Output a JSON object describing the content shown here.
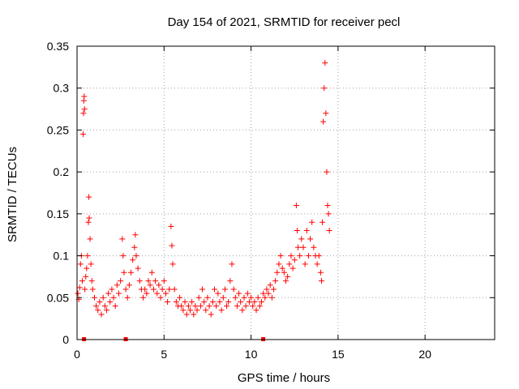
{
  "chart_data": {
    "type": "scatter",
    "title": "Day 154 of 2021, SRMTID for receiver pecl",
    "xlabel": "GPS time / hours",
    "ylabel": "SRMTID / TECUs",
    "xlim": [
      0,
      24
    ],
    "ylim": [
      0,
      0.35
    ],
    "x_ticks": [
      0,
      5,
      10,
      15,
      20
    ],
    "y_ticks": [
      0,
      0.05,
      0.1,
      0.15,
      0.2,
      0.25,
      0.3,
      0.35
    ],
    "x_tick_labels": [
      "0",
      "5",
      "10",
      "15",
      "20"
    ],
    "y_tick_labels": [
      "0",
      "0.05",
      "0.1",
      "0.15",
      "0.2",
      "0.25",
      "0.3",
      "0.35"
    ],
    "grid": true,
    "marker": "+",
    "color": "#ff0000",
    "gap_markers_x": [
      0.4,
      2.8,
      10.7
    ],
    "series": [
      {
        "name": "SRMTID",
        "points": [
          [
            0.05,
            0.055
          ],
          [
            0.1,
            0.048
          ],
          [
            0.15,
            0.062
          ],
          [
            0.2,
            0.09
          ],
          [
            0.25,
            0.1
          ],
          [
            0.3,
            0.07
          ],
          [
            0.35,
            0.245
          ],
          [
            0.37,
            0.27
          ],
          [
            0.39,
            0.285
          ],
          [
            0.41,
            0.29
          ],
          [
            0.43,
            0.275
          ],
          [
            0.45,
            0.06
          ],
          [
            0.5,
            0.075
          ],
          [
            0.55,
            0.085
          ],
          [
            0.6,
            0.1
          ],
          [
            0.65,
            0.14
          ],
          [
            0.68,
            0.17
          ],
          [
            0.7,
            0.145
          ],
          [
            0.75,
            0.12
          ],
          [
            0.8,
            0.09
          ],
          [
            0.85,
            0.07
          ],
          [
            0.9,
            0.06
          ],
          [
            1.0,
            0.05
          ],
          [
            1.1,
            0.04
          ],
          [
            1.2,
            0.035
          ],
          [
            1.3,
            0.045
          ],
          [
            1.4,
            0.03
          ],
          [
            1.5,
            0.05
          ],
          [
            1.6,
            0.04
          ],
          [
            1.7,
            0.035
          ],
          [
            1.8,
            0.055
          ],
          [
            1.9,
            0.045
          ],
          [
            2.0,
            0.06
          ],
          [
            2.1,
            0.05
          ],
          [
            2.2,
            0.04
          ],
          [
            2.3,
            0.065
          ],
          [
            2.4,
            0.055
          ],
          [
            2.5,
            0.07
          ],
          [
            2.6,
            0.12
          ],
          [
            2.65,
            0.1
          ],
          [
            2.7,
            0.08
          ],
          [
            2.8,
            0.06
          ],
          [
            2.9,
            0.05
          ],
          [
            3.0,
            0.065
          ],
          [
            3.1,
            0.08
          ],
          [
            3.2,
            0.095
          ],
          [
            3.3,
            0.11
          ],
          [
            3.35,
            0.125
          ],
          [
            3.4,
            0.1
          ],
          [
            3.5,
            0.085
          ],
          [
            3.6,
            0.07
          ],
          [
            3.7,
            0.06
          ],
          [
            3.8,
            0.05
          ],
          [
            3.9,
            0.06
          ],
          [
            4.0,
            0.055
          ],
          [
            4.1,
            0.07
          ],
          [
            4.2,
            0.065
          ],
          [
            4.3,
            0.08
          ],
          [
            4.4,
            0.06
          ],
          [
            4.5,
            0.07
          ],
          [
            4.6,
            0.055
          ],
          [
            4.7,
            0.065
          ],
          [
            4.8,
            0.05
          ],
          [
            4.9,
            0.06
          ],
          [
            5.0,
            0.07
          ],
          [
            5.1,
            0.055
          ],
          [
            5.2,
            0.045
          ],
          [
            5.3,
            0.06
          ],
          [
            5.4,
            0.135
          ],
          [
            5.45,
            0.112
          ],
          [
            5.5,
            0.09
          ],
          [
            5.6,
            0.06
          ],
          [
            5.7,
            0.045
          ],
          [
            5.8,
            0.04
          ],
          [
            5.9,
            0.05
          ],
          [
            6.0,
            0.04
          ],
          [
            6.1,
            0.035
          ],
          [
            6.2,
            0.045
          ],
          [
            6.3,
            0.03
          ],
          [
            6.4,
            0.04
          ],
          [
            6.5,
            0.035
          ],
          [
            6.6,
            0.045
          ],
          [
            6.7,
            0.03
          ],
          [
            6.8,
            0.04
          ],
          [
            6.9,
            0.035
          ],
          [
            7.0,
            0.05
          ],
          [
            7.1,
            0.04
          ],
          [
            7.2,
            0.06
          ],
          [
            7.3,
            0.045
          ],
          [
            7.4,
            0.035
          ],
          [
            7.5,
            0.05
          ],
          [
            7.6,
            0.04
          ],
          [
            7.7,
            0.03
          ],
          [
            7.8,
            0.045
          ],
          [
            7.9,
            0.06
          ],
          [
            8.0,
            0.04
          ],
          [
            8.1,
            0.055
          ],
          [
            8.2,
            0.045
          ],
          [
            8.3,
            0.035
          ],
          [
            8.4,
            0.05
          ],
          [
            8.5,
            0.06
          ],
          [
            8.6,
            0.04
          ],
          [
            8.7,
            0.045
          ],
          [
            8.8,
            0.07
          ],
          [
            8.9,
            0.09
          ],
          [
            9.0,
            0.06
          ],
          [
            9.1,
            0.05
          ],
          [
            9.2,
            0.04
          ],
          [
            9.3,
            0.055
          ],
          [
            9.4,
            0.045
          ],
          [
            9.5,
            0.035
          ],
          [
            9.6,
            0.05
          ],
          [
            9.7,
            0.04
          ],
          [
            9.8,
            0.055
          ],
          [
            9.9,
            0.045
          ],
          [
            10.0,
            0.05
          ],
          [
            10.1,
            0.04
          ],
          [
            10.2,
            0.045
          ],
          [
            10.3,
            0.035
          ],
          [
            10.4,
            0.05
          ],
          [
            10.5,
            0.04
          ],
          [
            10.6,
            0.045
          ],
          [
            10.7,
            0.055
          ],
          [
            10.8,
            0.05
          ],
          [
            10.9,
            0.06
          ],
          [
            11.0,
            0.055
          ],
          [
            11.1,
            0.065
          ],
          [
            11.2,
            0.05
          ],
          [
            11.3,
            0.06
          ],
          [
            11.4,
            0.07
          ],
          [
            11.5,
            0.08
          ],
          [
            11.6,
            0.09
          ],
          [
            11.7,
            0.1
          ],
          [
            11.8,
            0.085
          ],
          [
            11.9,
            0.08
          ],
          [
            12.0,
            0.07
          ],
          [
            12.1,
            0.075
          ],
          [
            12.2,
            0.09
          ],
          [
            12.3,
            0.1
          ],
          [
            12.4,
            0.085
          ],
          [
            12.5,
            0.095
          ],
          [
            12.6,
            0.16
          ],
          [
            12.65,
            0.13
          ],
          [
            12.7,
            0.11
          ],
          [
            12.8,
            0.1
          ],
          [
            12.9,
            0.12
          ],
          [
            13.0,
            0.11
          ],
          [
            13.1,
            0.09
          ],
          [
            13.2,
            0.13
          ],
          [
            13.3,
            0.1
          ],
          [
            13.4,
            0.12
          ],
          [
            13.5,
            0.14
          ],
          [
            13.6,
            0.11
          ],
          [
            13.7,
            0.1
          ],
          [
            13.8,
            0.09
          ],
          [
            13.9,
            0.1
          ],
          [
            14.0,
            0.08
          ],
          [
            14.05,
            0.07
          ],
          [
            14.1,
            0.14
          ],
          [
            14.15,
            0.26
          ],
          [
            14.2,
            0.3
          ],
          [
            14.25,
            0.33
          ],
          [
            14.3,
            0.27
          ],
          [
            14.35,
            0.2
          ],
          [
            14.4,
            0.16
          ],
          [
            14.45,
            0.15
          ],
          [
            14.5,
            0.13
          ]
        ]
      }
    ]
  }
}
